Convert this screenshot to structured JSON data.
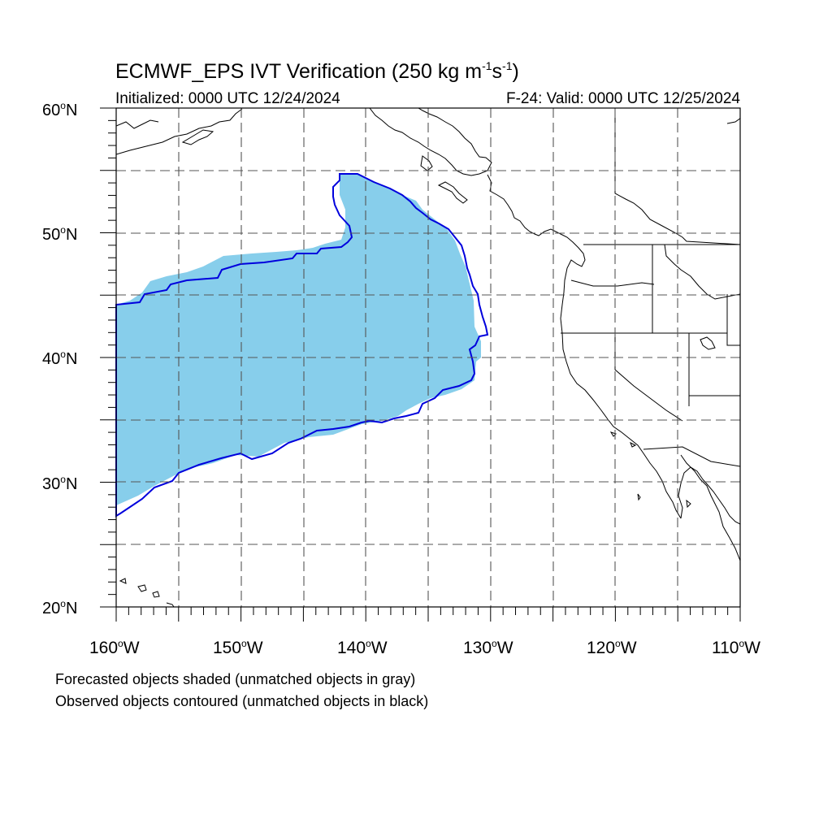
{
  "title": {
    "main": "ECMWF_EPS IVT Verification (250 kg m",
    "exp1": "-1",
    "mid": "s",
    "exp2": "-1",
    "end": ")"
  },
  "subtitle_left": "Initialized: 0000 UTC 12/24/2024",
  "subtitle_right": "F-24: Valid: 0000 UTC 12/25/2024",
  "lat_labels": [
    {
      "deg": "60",
      "hemi": "N"
    },
    {
      "deg": "50",
      "hemi": "N"
    },
    {
      "deg": "40",
      "hemi": "N"
    },
    {
      "deg": "30",
      "hemi": "N"
    },
    {
      "deg": "20",
      "hemi": "N"
    }
  ],
  "lon_labels": [
    {
      "deg": "160",
      "hemi": "W"
    },
    {
      "deg": "150",
      "hemi": "W"
    },
    {
      "deg": "140",
      "hemi": "W"
    },
    {
      "deg": "130",
      "hemi": "W"
    },
    {
      "deg": "120",
      "hemi": "W"
    },
    {
      "deg": "110",
      "hemi": "W"
    }
  ],
  "notes": [
    "Forecasted objects shaded (unmatched objects in gray)",
    "Observed objects contoured (unmatched objects in black)"
  ],
  "map": {
    "lat_range": [
      20,
      60
    ],
    "lon_range": [
      -160,
      -110
    ],
    "grid_spacing_deg": 5,
    "colors": {
      "forecast_fill": "#87ceeb",
      "observed_contour": "#0000dd",
      "grid": "#555555",
      "coast": "#000000"
    }
  }
}
